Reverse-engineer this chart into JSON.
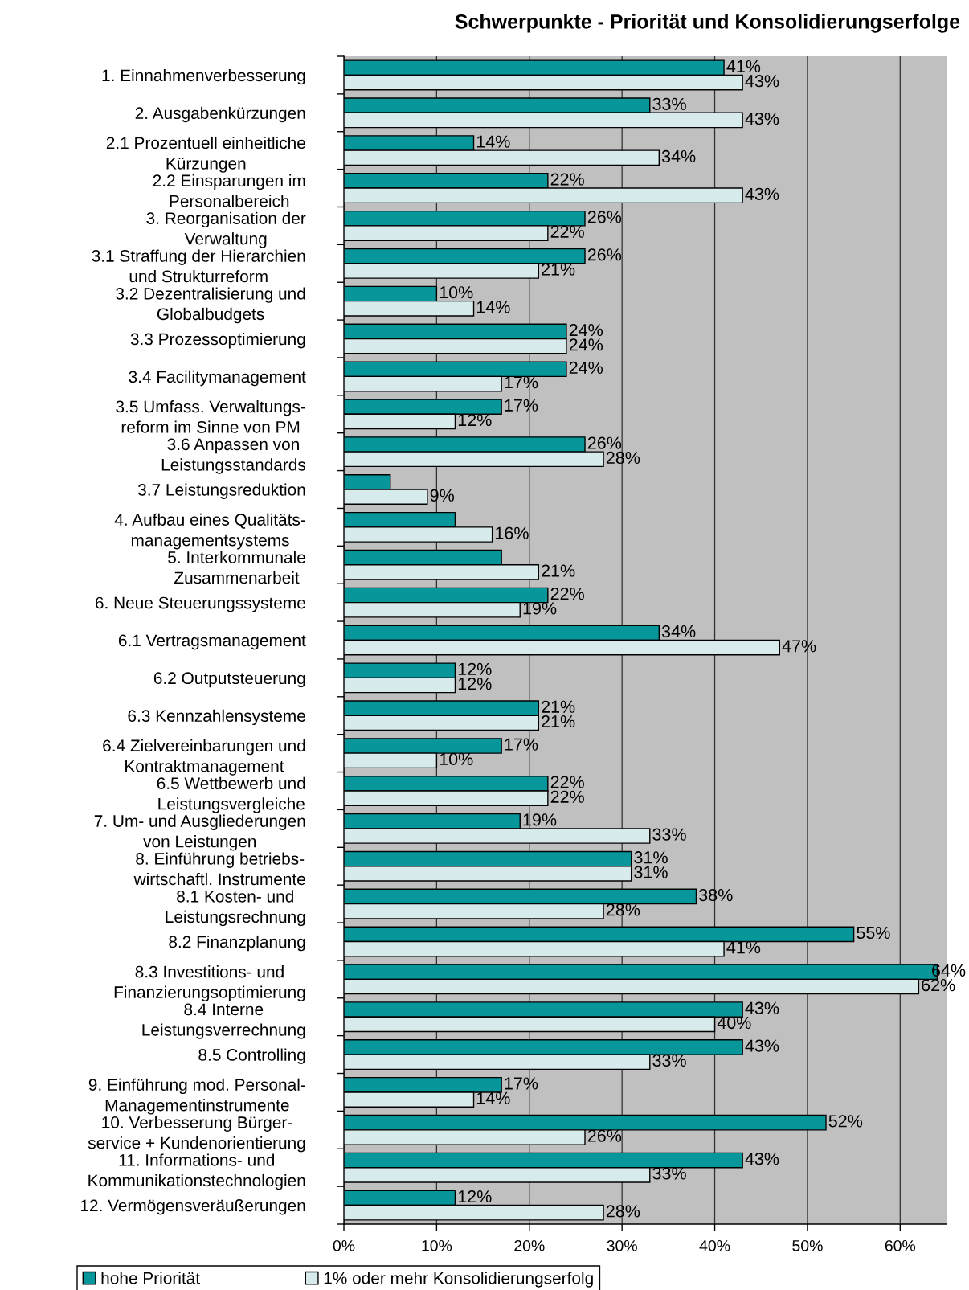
{
  "chart_data": {
    "type": "bar",
    "orientation": "horizontal",
    "title": "Schwerpunkte - Priorität und Konsolidierungserfolge",
    "categories": [
      "1. Einnahmenverbesserung",
      "2. Ausgabenkürzungen",
      "2.1 Prozentuell einheitliche\nKürzungen",
      "2.2 Einsparungen im\nPersonalbereich",
      "3. Reorganisation der\nVerwaltung",
      "3.1 Straffung der Hierarchien\nund Strukturreform",
      "3.2 Dezentralisierung und\nGlobalbudgets",
      "3.3 Prozessoptimierung",
      "3.4 Facilitymanagement",
      "3.5 Umfass. Verwaltungs-\nreform im Sinne von PM",
      "3.6 Anpassen von\nLeistungsstandards",
      "3.7 Leistungsreduktion",
      "4. Aufbau eines Qualitäts-\nmanagementsystems",
      "5. Interkommunale\nZusammenarbeit",
      "6. Neue Steuerungssysteme",
      "6.1 Vertragsmanagement",
      "6.2 Outputsteuerung",
      "6.3 Kennzahlensysteme",
      "6.4 Zielvereinbarungen und\nKontraktmanagement",
      "6.5 Wettbewerb und\nLeistungsvergleiche",
      "7. Um- und Ausgliederungen\nvon Leistungen",
      "8. Einführung betriebs-\nwirtschaftl. Instrumente",
      "8.1 Kosten- und\nLeistungsrechnung",
      "8.2 Finanzplanung",
      "8.3 Investitions- und\nFinanzierungsoptimierung",
      "8.4 Interne\nLeistungsverrechnung",
      "8.5 Controlling",
      "9. Einführung mod. Personal-\nManagementinstrumente",
      "10. Verbesserung Bürger-\nservice + Kundenorientierung",
      "11. Informations- und\nKommunikationstechnologien",
      "12. Vermögensveräußerungen"
    ],
    "series": [
      {
        "name": "hohe Priorität",
        "color": "#07979b",
        "values": [
          41,
          33,
          14,
          22,
          26,
          26,
          10,
          24,
          24,
          17,
          26,
          5,
          12,
          17,
          22,
          34,
          12,
          21,
          17,
          22,
          19,
          31,
          38,
          55,
          64,
          43,
          43,
          17,
          52,
          43,
          12
        ],
        "value_labels": [
          "41%",
          "33%",
          "14%",
          "22%",
          "26%",
          "26%",
          "10%",
          "24%",
          "24%",
          "17%",
          "26%",
          null,
          null,
          null,
          "22%",
          "34%",
          "12%",
          "21%",
          "17%",
          "22%",
          "19%",
          "31%",
          "38%",
          "55%",
          "64%",
          "43%",
          "43%",
          "17%",
          "52%",
          "43%",
          "12%"
        ]
      },
      {
        "name": "1% oder mehr Konsolidierungserfolg",
        "color": "#d7ebed",
        "values": [
          43,
          43,
          34,
          43,
          22,
          21,
          14,
          24,
          17,
          12,
          28,
          9,
          16,
          21,
          19,
          47,
          12,
          21,
          10,
          22,
          33,
          31,
          28,
          41,
          62,
          40,
          33,
          14,
          26,
          33,
          28
        ],
        "value_labels": [
          "43%",
          "43%",
          "34%",
          "43%",
          "22%",
          "21%",
          "14%",
          "24%",
          "17%",
          "12%",
          "28%",
          "9%",
          "16%",
          "21%",
          "19%",
          "47%",
          "12%",
          "21%",
          "10%",
          "22%",
          "33%",
          "31%",
          "28%",
          "41%",
          "62%",
          "40%",
          "33%",
          "14%",
          "26%",
          "33%",
          "28%"
        ]
      }
    ],
    "xlim": [
      0,
      65
    ],
    "xticks": [
      {
        "value": 0,
        "label": "0%"
      },
      {
        "value": 10,
        "label": "10%"
      },
      {
        "value": 20,
        "label": "20%"
      },
      {
        "value": 30,
        "label": "30%"
      },
      {
        "value": 40,
        "label": "40%"
      },
      {
        "value": 50,
        "label": "50%"
      },
      {
        "value": 60,
        "label": "60%"
      }
    ],
    "grid": "x",
    "legend": "bottom"
  }
}
